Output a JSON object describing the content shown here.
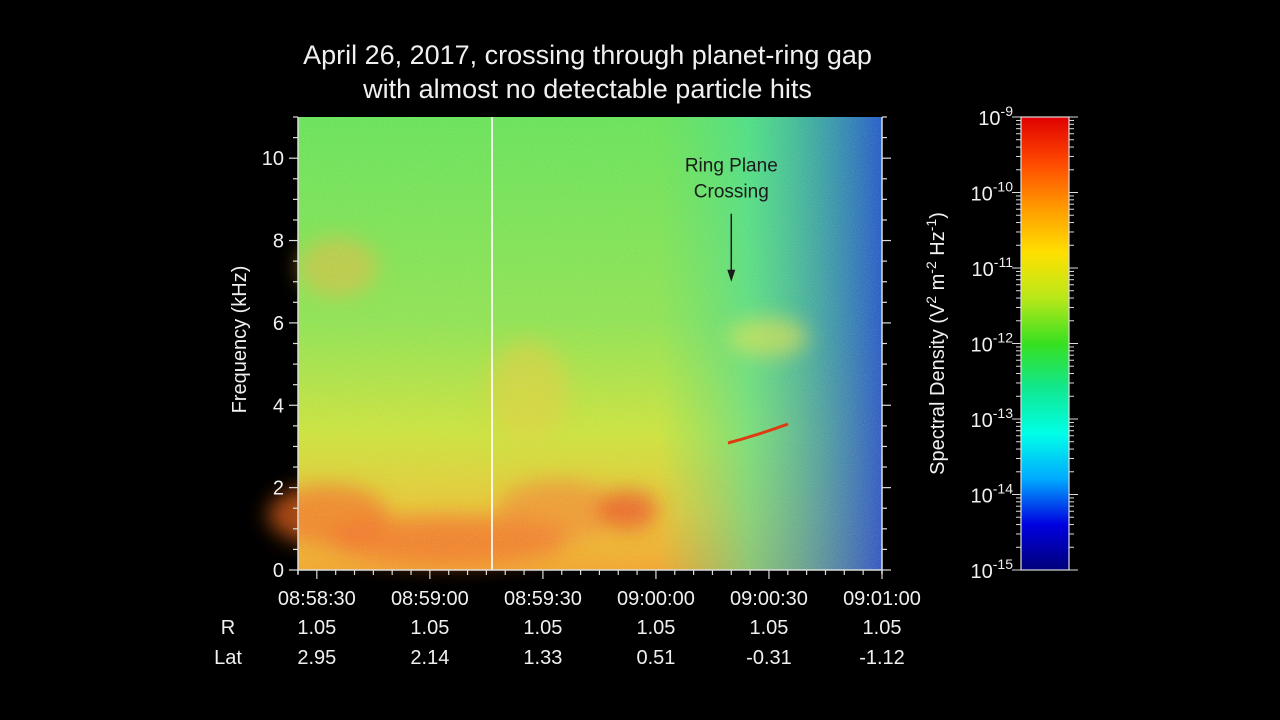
{
  "title": {
    "line1": "April 26, 2017, crossing through planet-ring gap",
    "line2": "with almost no detectable particle hits"
  },
  "chart_data": {
    "type": "heatmap",
    "ylabel": "Frequency (kHz)",
    "ylim": [
      0,
      11
    ],
    "yticks": [
      0,
      2,
      4,
      6,
      8,
      10
    ],
    "xticks": [
      "08:58:30",
      "08:59:00",
      "08:59:30",
      "09:00:00",
      "09:00:30",
      "09:01:00"
    ],
    "xrange": [
      "08:58:25",
      "09:01:00"
    ],
    "rows": [
      {
        "label": "R",
        "values": [
          "1.05",
          "1.05",
          "1.05",
          "1.05",
          "1.05",
          "1.05"
        ]
      },
      {
        "label": "Lat",
        "values": [
          "2.95",
          "2.14",
          "1.33",
          "0.51",
          "-0.31",
          "-1.12"
        ]
      }
    ],
    "annotation": {
      "line1": "Ring Plane",
      "line2": "Crossing",
      "time": "09:00:20",
      "freq": 7.0
    },
    "colorbar": {
      "label": "Spectral Density (V² m⁻² Hz⁻¹)",
      "label_base": "Spectral Density (V",
      "label_m": " m",
      "label_hz": " Hz",
      "label_close": ")",
      "exp_v": "2",
      "exp_m": "-2",
      "exp_hz": "-1",
      "scale": "log",
      "range": [
        1e-15,
        1e-09
      ],
      "base": "10",
      "tick_exponents": [
        "-9",
        "-10",
        "-11",
        "-12",
        "-13",
        "-14",
        "-15"
      ],
      "colors": [
        "#00007a",
        "#0000e0",
        "#00a8ff",
        "#00ffe8",
        "#10e890",
        "#38e020",
        "#b8e81a",
        "#ffe000",
        "#ff9a00",
        "#ff4800",
        "#e00000"
      ]
    }
  }
}
